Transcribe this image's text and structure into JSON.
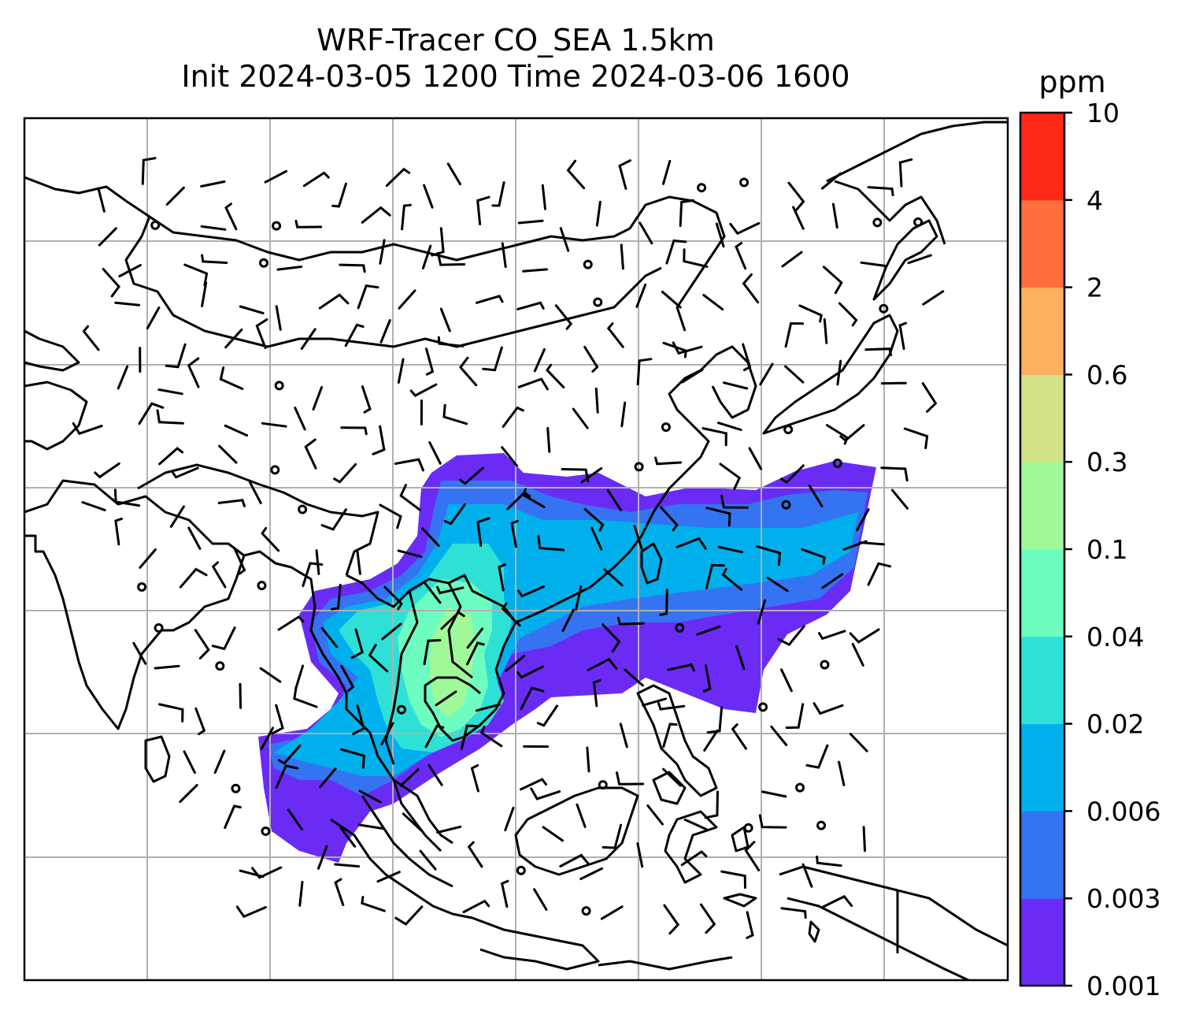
{
  "title_line1": "WRF-Tracer CO_SEA 1.5km",
  "title_line2": "Init 2024-03-05 1200 Time 2024-03-06 1600",
  "colorbar": {
    "unit": "ppm",
    "ticks": [
      "0.001",
      "0.003",
      "0.006",
      "0.02",
      "0.04",
      "0.1",
      "0.3",
      "0.6",
      "2",
      "4",
      "10"
    ],
    "colors": [
      "#6a2cf5",
      "#3474f2",
      "#00b0ec",
      "#2fe0d6",
      "#6dfdc0",
      "#a0f998",
      "#d2e286",
      "#fdb060",
      "#fe6f3b",
      "#fe2a16"
    ]
  },
  "map": {
    "gridlines": true,
    "land_outline_color": "#000000",
    "gridline_color": "#b0b0b0"
  }
}
